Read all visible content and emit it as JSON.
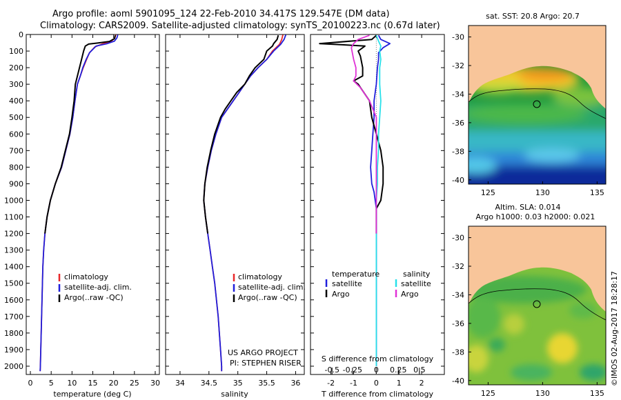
{
  "header": {
    "line1": "Argo profile: aoml 5901095_124 22-Feb-2010 34.417S 129.547E (DM data)",
    "line2": "Climatology: CARS2009. Satellite-adjusted climatology: synTS_20100223.nc (0.67d later)"
  },
  "stamp": "©IMOS 02-Aug-2017 18:28:17",
  "colors": {
    "climatology": "#e8272a",
    "satellite": "#1f1fdc",
    "argo": "#000000",
    "sal_satellite": "#28e0ea",
    "sal_argo": "#e031d6",
    "land": "#f8c59a"
  },
  "chart_data": [
    {
      "type": "line",
      "xlabel": "temperature (deg C)",
      "xlim": [
        -1,
        31
      ],
      "xticks": [
        0,
        5,
        10,
        15,
        20,
        25,
        30
      ],
      "ylim": [
        2050,
        0
      ],
      "yticks": [
        0,
        100,
        200,
        300,
        400,
        500,
        600,
        700,
        800,
        900,
        1000,
        1100,
        1200,
        1300,
        1400,
        1500,
        1600,
        1700,
        1800,
        1900,
        2000
      ],
      "series": [
        {
          "name": "climatology",
          "color": "#e8272a",
          "points": [
            [
              20.5,
              2
            ],
            [
              20.3,
              20
            ],
            [
              19.5,
              40
            ],
            [
              17.5,
              55
            ],
            [
              15.5,
              75
            ],
            [
              14.2,
              110
            ],
            [
              13.5,
              150
            ],
            [
              12.7,
              200
            ],
            [
              12.0,
              250
            ],
            [
              11.3,
              300
            ],
            [
              10.7,
              400
            ],
            [
              10.2,
              500
            ],
            [
              9.5,
              600
            ],
            [
              8.5,
              700
            ],
            [
              7.5,
              800
            ],
            [
              6.0,
              900
            ],
            [
              4.8,
              1000
            ],
            [
              4.0,
              1100
            ],
            [
              3.5,
              1200
            ],
            [
              3.2,
              1300
            ],
            [
              3.0,
              1400
            ],
            [
              2.8,
              1600
            ],
            [
              2.6,
              1800
            ],
            [
              2.4,
              2000
            ],
            [
              2.35,
              2030
            ]
          ]
        },
        {
          "name": "satellite-adj. clim.",
          "color": "#1f1fdc",
          "points": [
            [
              21.0,
              2
            ],
            [
              20.8,
              20
            ],
            [
              20.2,
              40
            ],
            [
              18.5,
              55
            ],
            [
              15.8,
              70
            ],
            [
              14.2,
              110
            ],
            [
              13.4,
              150
            ],
            [
              12.6,
              200
            ],
            [
              12.0,
              250
            ],
            [
              11.3,
              300
            ],
            [
              10.7,
              400
            ],
            [
              10.2,
              500
            ],
            [
              9.5,
              600
            ],
            [
              8.5,
              700
            ],
            [
              7.5,
              800
            ],
            [
              6.0,
              900
            ],
            [
              4.8,
              1000
            ],
            [
              4.0,
              1100
            ],
            [
              3.5,
              1200
            ],
            [
              3.2,
              1300
            ],
            [
              3.0,
              1400
            ],
            [
              2.8,
              1600
            ],
            [
              2.6,
              1800
            ],
            [
              2.4,
              2000
            ],
            [
              2.35,
              2030
            ]
          ]
        },
        {
          "name": "Argo(..raw -QC)",
          "color": "#000000",
          "points": [
            [
              20.4,
              5
            ],
            [
              20.2,
              25
            ],
            [
              19.0,
              42
            ],
            [
              16.0,
              52
            ],
            [
              14.0,
              58
            ],
            [
              13.2,
              70
            ],
            [
              12.8,
              100
            ],
            [
              12.3,
              150
            ],
            [
              11.8,
              200
            ],
            [
              11.3,
              250
            ],
            [
              10.8,
              300
            ],
            [
              10.5,
              400
            ],
            [
              10.0,
              500
            ],
            [
              9.4,
              600
            ],
            [
              8.4,
              700
            ],
            [
              7.4,
              800
            ],
            [
              6.0,
              900
            ],
            [
              4.8,
              1000
            ],
            [
              4.0,
              1100
            ],
            [
              3.5,
              1200
            ]
          ]
        }
      ],
      "legend": [
        "climatology",
        "satellite-adj. clim.",
        "Argo(..raw -QC)"
      ]
    },
    {
      "type": "line",
      "xlabel": "salinity",
      "xlim": [
        33.75,
        36.15
      ],
      "xticks": [
        34,
        34.5,
        35,
        35.5,
        36
      ],
      "ylim": [
        2050,
        0
      ],
      "series": [
        {
          "name": "climatology",
          "color": "#e8272a",
          "points": [
            [
              35.78,
              2
            ],
            [
              35.76,
              30
            ],
            [
              35.72,
              60
            ],
            [
              35.6,
              100
            ],
            [
              35.5,
              150
            ],
            [
              35.35,
              200
            ],
            [
              35.22,
              250
            ],
            [
              35.12,
              300
            ],
            [
              35.02,
              350
            ],
            [
              34.92,
              400
            ],
            [
              34.82,
              450
            ],
            [
              34.72,
              500
            ],
            [
              34.62,
              600
            ],
            [
              34.54,
              700
            ],
            [
              34.48,
              800
            ],
            [
              34.43,
              900
            ],
            [
              34.41,
              1000
            ],
            [
              34.44,
              1100
            ],
            [
              34.48,
              1200
            ],
            [
              34.52,
              1300
            ],
            [
              34.56,
              1400
            ],
            [
              34.6,
              1500
            ],
            [
              34.63,
              1600
            ],
            [
              34.66,
              1700
            ],
            [
              34.68,
              1800
            ],
            [
              34.7,
              1900
            ],
            [
              34.72,
              2000
            ],
            [
              34.72,
              2030
            ]
          ]
        },
        {
          "name": "satellite-adj. clim.",
          "color": "#1f1fdc",
          "points": [
            [
              35.83,
              2
            ],
            [
              35.8,
              30
            ],
            [
              35.74,
              60
            ],
            [
              35.62,
              100
            ],
            [
              35.5,
              150
            ],
            [
              35.35,
              200
            ],
            [
              35.22,
              250
            ],
            [
              35.12,
              300
            ],
            [
              35.02,
              350
            ],
            [
              34.92,
              400
            ],
            [
              34.82,
              450
            ],
            [
              34.72,
              500
            ],
            [
              34.62,
              600
            ],
            [
              34.54,
              700
            ],
            [
              34.48,
              800
            ],
            [
              34.43,
              900
            ],
            [
              34.41,
              1000
            ],
            [
              34.44,
              1100
            ],
            [
              34.48,
              1200
            ],
            [
              34.52,
              1300
            ],
            [
              34.56,
              1400
            ],
            [
              34.6,
              1500
            ],
            [
              34.63,
              1600
            ],
            [
              34.66,
              1700
            ],
            [
              34.68,
              1800
            ],
            [
              34.7,
              1900
            ],
            [
              34.72,
              2000
            ],
            [
              34.72,
              2030
            ]
          ]
        },
        {
          "name": "Argo(..raw -QC)",
          "color": "#000000",
          "points": [
            [
              35.7,
              5
            ],
            [
              35.68,
              30
            ],
            [
              35.62,
              55
            ],
            [
              35.6,
              70
            ],
            [
              35.5,
              100
            ],
            [
              35.45,
              150
            ],
            [
              35.3,
              200
            ],
            [
              35.2,
              250
            ],
            [
              35.12,
              300
            ],
            [
              34.98,
              350
            ],
            [
              34.88,
              400
            ],
            [
              34.78,
              450
            ],
            [
              34.7,
              500
            ],
            [
              34.6,
              600
            ],
            [
              34.53,
              700
            ],
            [
              34.47,
              800
            ],
            [
              34.43,
              900
            ],
            [
              34.41,
              1000
            ],
            [
              34.44,
              1100
            ],
            [
              34.48,
              1200
            ]
          ]
        }
      ],
      "legend": [
        "climatology",
        "satellite-adj. clim.",
        "Argo(..raw -QC)"
      ],
      "annotation": [
        "US ARGO PROJECT",
        "PI: STEPHEN RISER"
      ]
    },
    {
      "type": "line",
      "xlabel": "T difference from climatology",
      "xlim": [
        -2.9,
        3.0
      ],
      "xticks": [
        -2,
        -1,
        0,
        1,
        2
      ],
      "top_label": "S difference from climatology",
      "top_ticks": [
        {
          "x": -1.95,
          "label": "-0.5"
        },
        {
          "x": -1.05,
          "label": "-0.25"
        },
        {
          "x": 0,
          "label": "0"
        },
        {
          "x": 0.97,
          "label": "0.25"
        },
        {
          "x": 1.9,
          "label": "0.5"
        }
      ],
      "ylim": [
        2050,
        0
      ],
      "series": [
        {
          "name": "temperature satellite",
          "color": "#1f1fdc",
          "points": [
            [
              0.1,
              5
            ],
            [
              0.2,
              30
            ],
            [
              0.6,
              55
            ],
            [
              0.3,
              80
            ],
            [
              0.1,
              110
            ],
            [
              0.1,
              150
            ],
            [
              0.05,
              200
            ],
            [
              0.0,
              300
            ],
            [
              -0.1,
              400
            ],
            [
              -0.1,
              500
            ],
            [
              -0.15,
              600
            ],
            [
              -0.2,
              700
            ],
            [
              -0.25,
              800
            ],
            [
              -0.2,
              900
            ],
            [
              -0.1,
              950
            ],
            [
              0.0,
              1050
            ],
            [
              0.0,
              1200
            ],
            [
              0.0,
              1500
            ],
            [
              0.0,
              2000
            ]
          ]
        },
        {
          "name": "temperature Argo",
          "color": "#000000",
          "points": [
            [
              0.0,
              5
            ],
            [
              -0.2,
              30
            ],
            [
              -2.5,
              55
            ],
            [
              -1.5,
              62
            ],
            [
              -0.5,
              70
            ],
            [
              -0.8,
              100
            ],
            [
              -0.7,
              130
            ],
            [
              -0.6,
              200
            ],
            [
              -0.6,
              250
            ],
            [
              -1.0,
              280
            ],
            [
              -0.8,
              300
            ],
            [
              -0.3,
              400
            ],
            [
              -0.2,
              500
            ],
            [
              0.0,
              600
            ],
            [
              0.2,
              700
            ],
            [
              0.3,
              800
            ],
            [
              0.3,
              900
            ],
            [
              0.2,
              1000
            ],
            [
              0.0,
              1050
            ],
            [
              0.0,
              1200
            ]
          ]
        },
        {
          "name": "salinity satellite",
          "color": "#28e0ea",
          "points": [
            [
              0.0,
              5
            ],
            [
              0.1,
              40
            ],
            [
              0.2,
              70
            ],
            [
              0.15,
              100
            ],
            [
              0.2,
              150
            ],
            [
              0.15,
              200
            ],
            [
              0.15,
              300
            ],
            [
              0.2,
              400
            ],
            [
              0.15,
              500
            ],
            [
              0.1,
              600
            ],
            [
              0.1,
              700
            ],
            [
              0.05,
              800
            ],
            [
              0.05,
              900
            ],
            [
              0.0,
              1000
            ],
            [
              0.0,
              1200
            ],
            [
              0.0,
              1500
            ],
            [
              0.0,
              2000
            ]
          ]
        },
        {
          "name": "salinity Argo",
          "color": "#e031d6",
          "points": [
            [
              -0.3,
              5
            ],
            [
              -0.8,
              30
            ],
            [
              -1.0,
              55
            ],
            [
              -1.1,
              80
            ],
            [
              -1.0,
              150
            ],
            [
              -0.9,
              200
            ],
            [
              -0.9,
              250
            ],
            [
              -1.0,
              280
            ],
            [
              -0.7,
              320
            ],
            [
              -0.3,
              400
            ],
            [
              0.0,
              500
            ],
            [
              0.0,
              600
            ],
            [
              0.0,
              800
            ],
            [
              0.0,
              1000
            ],
            [
              0.0,
              1200
            ]
          ]
        }
      ],
      "legend_headers": [
        "temperature",
        "salinity"
      ],
      "legend": [
        "satellite",
        "Argo",
        "satellite",
        "Argo"
      ]
    },
    {
      "type": "heatmap",
      "title": "sat. SST: 20.8 Argo: 20.7",
      "xticks": [
        125,
        130,
        135
      ],
      "yticks": [
        -30,
        -32,
        -34,
        -36,
        -38,
        -40
      ],
      "xlim": [
        123.2,
        135.8
      ],
      "ylim": [
        -40.3,
        -29.2
      ]
    },
    {
      "type": "heatmap",
      "title_lines": [
        "Altim. SLA: 0.014",
        "Argo h1000: 0.03 h2000: 0.021"
      ],
      "xticks": [
        125,
        130,
        135
      ],
      "yticks": [
        -30,
        -32,
        -34,
        -36,
        -38,
        -40
      ],
      "xlim": [
        123.2,
        135.8
      ],
      "ylim": [
        -40.3,
        -29.2
      ]
    }
  ]
}
